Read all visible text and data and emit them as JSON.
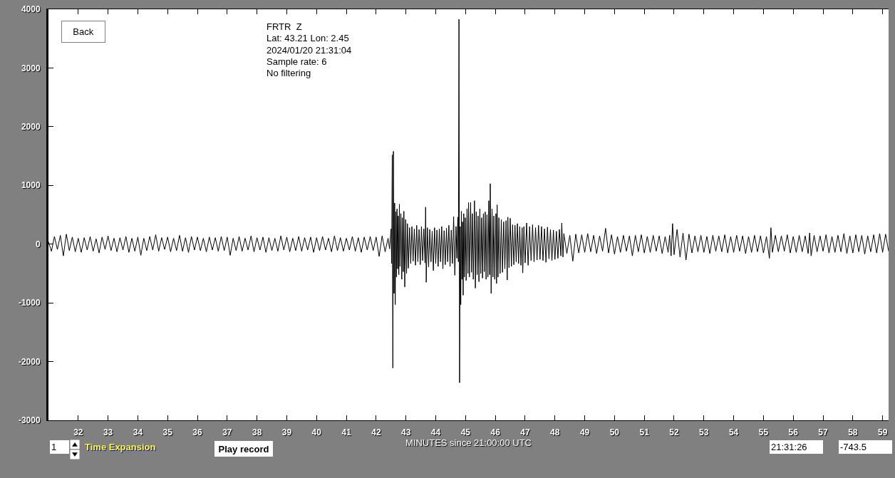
{
  "chart_data": {
    "type": "line",
    "xlabel": "MINUTES since 21:00:00 UTC",
    "annotations": [
      "FRTR  Z",
      "Lat: 43.21 Lon: 2.45",
      "2024/01/20 21:31:04",
      "Sample rate: 6",
      "No filtering",
      "Back",
      "1",
      "Time Expansion",
      "Play record",
      "21:31:26",
      "-743.5"
    ],
    "xlim": [
      31,
      59.2
    ],
    "xticks": [
      32,
      33,
      34,
      35,
      36,
      37,
      38,
      39,
      40,
      41,
      42,
      43,
      44,
      45,
      46,
      47,
      48,
      49,
      50,
      51,
      52,
      53,
      54,
      55,
      56,
      57,
      58,
      59
    ],
    "ylim": [
      -3000,
      4000
    ],
    "yticks": [
      -3000,
      -2000,
      -1000,
      0,
      1000,
      2000,
      3000,
      4000
    ],
    "x": [
      31.0,
      31.1,
      31.2,
      31.3,
      31.4,
      31.5,
      31.6,
      31.7,
      31.8,
      31.9,
      32.0,
      32.1,
      32.2,
      32.3,
      32.4,
      32.5,
      32.6,
      32.7,
      32.8,
      32.9,
      33.0,
      33.1,
      33.2,
      33.3,
      33.4,
      33.5,
      33.6,
      33.7,
      33.8,
      33.9,
      34.0,
      34.1,
      34.2,
      34.3,
      34.4,
      34.5,
      34.6,
      34.7,
      34.8,
      34.9,
      35.0,
      35.1,
      35.2,
      35.3,
      35.4,
      35.5,
      35.6,
      35.7,
      35.8,
      35.9,
      36.0,
      36.1,
      36.2,
      36.3,
      36.4,
      36.5,
      36.6,
      36.7,
      36.8,
      36.9,
      37.0,
      37.1,
      37.2,
      37.3,
      37.4,
      37.5,
      37.6,
      37.7,
      37.8,
      37.9,
      38.0,
      38.1,
      38.2,
      38.3,
      38.4,
      38.5,
      38.6,
      38.7,
      38.8,
      38.9,
      39.0,
      39.1,
      39.2,
      39.3,
      39.4,
      39.5,
      39.6,
      39.7,
      39.8,
      39.9,
      40.0,
      40.1,
      40.2,
      40.3,
      40.4,
      40.5,
      40.6,
      40.7,
      40.8,
      40.9,
      41.0,
      41.1,
      41.2,
      41.3,
      41.4,
      41.5,
      41.6,
      41.7,
      41.8,
      41.9,
      42.0,
      42.1,
      42.2,
      42.3,
      42.4,
      42.45,
      42.5,
      42.52,
      42.54,
      42.56,
      42.58,
      42.6,
      42.62,
      42.64,
      42.66,
      42.68,
      42.7,
      42.72,
      42.74,
      42.76,
      42.78,
      42.8,
      42.83,
      42.86,
      42.88,
      42.91,
      42.93,
      42.96,
      42.99,
      43.02,
      43.05,
      43.08,
      43.12,
      43.16,
      43.2,
      43.24,
      43.28,
      43.32,
      43.36,
      43.4,
      43.44,
      43.48,
      43.52,
      43.56,
      43.6,
      43.64,
      43.66,
      43.68,
      43.72,
      43.76,
      43.8,
      43.84,
      43.88,
      43.92,
      43.96,
      44.0,
      44.04,
      44.08,
      44.12,
      44.16,
      44.2,
      44.24,
      44.28,
      44.32,
      44.36,
      44.4,
      44.44,
      44.48,
      44.52,
      44.56,
      44.6,
      44.64,
      44.68,
      44.71,
      44.74,
      44.76,
      44.78,
      44.8,
      44.82,
      44.84,
      44.86,
      44.88,
      44.9,
      44.92,
      44.94,
      44.96,
      44.99,
      45.02,
      45.05,
      45.08,
      45.1,
      45.13,
      45.17,
      45.2,
      45.23,
      45.26,
      45.3,
      45.33,
      45.36,
      45.39,
      45.42,
      45.45,
      45.48,
      45.51,
      45.54,
      45.57,
      45.6,
      45.63,
      45.66,
      45.69,
      45.72,
      45.75,
      45.78,
      45.81,
      45.83,
      45.86,
      45.89,
      45.92,
      45.95,
      45.98,
      46.02,
      46.04,
      46.06,
      46.09,
      46.12,
      46.16,
      46.2,
      46.24,
      46.28,
      46.32,
      46.36,
      46.4,
      46.42,
      46.46,
      46.5,
      46.54,
      46.58,
      46.62,
      46.66,
      46.7,
      46.74,
      46.78,
      46.82,
      46.86,
      46.9,
      46.92,
      46.96,
      47.0,
      47.05,
      47.1,
      47.15,
      47.2,
      47.25,
      47.3,
      47.35,
      47.4,
      47.45,
      47.5,
      47.55,
      47.6,
      47.65,
      47.7,
      47.75,
      47.8,
      47.85,
      47.9,
      47.95,
      48.0,
      48.05,
      48.1,
      48.15,
      48.2,
      48.23,
      48.27,
      48.3,
      48.4,
      48.5,
      48.6,
      48.7,
      48.8,
      48.9,
      49.0,
      49.1,
      49.2,
      49.3,
      49.4,
      49.5,
      49.6,
      49.7,
      49.8,
      49.9,
      50.0,
      50.1,
      50.2,
      50.3,
      50.4,
      50.5,
      50.6,
      50.7,
      50.8,
      50.9,
      51.0,
      51.1,
      51.2,
      51.3,
      51.4,
      51.5,
      51.6,
      51.7,
      51.8,
      51.85,
      51.9,
      51.95,
      52.0,
      52.1,
      52.2,
      52.3,
      52.4,
      52.5,
      52.6,
      52.7,
      52.8,
      52.9,
      53.0,
      53.1,
      53.2,
      53.3,
      53.4,
      53.5,
      53.6,
      53.7,
      53.8,
      53.9,
      54.0,
      54.1,
      54.2,
      54.3,
      54.4,
      54.5,
      54.6,
      54.7,
      54.8,
      54.9,
      55.0,
      55.1,
      55.2,
      55.25,
      55.3,
      55.4,
      55.5,
      55.6,
      55.7,
      55.8,
      55.9,
      56.0,
      56.1,
      56.2,
      56.3,
      56.4,
      56.5,
      56.55,
      56.6,
      56.7,
      56.8,
      56.9,
      57.0,
      57.1,
      57.2,
      57.3,
      57.4,
      57.5,
      57.6,
      57.7,
      57.8,
      57.9,
      58.0,
      58.1,
      58.2,
      58.3,
      58.4,
      58.5,
      58.6,
      58.7,
      58.8,
      58.9,
      59.0,
      59.1,
      59.2
    ],
    "series": [
      {
        "color": "#000000",
        "values": [
          40,
          -120,
          130,
          -90,
          150,
          -200,
          170,
          -110,
          120,
          -130,
          100,
          -140,
          110,
          -100,
          130,
          -120,
          90,
          -150,
          120,
          -90,
          140,
          -110,
          100,
          -130,
          110,
          -100,
          130,
          -140,
          100,
          -120,
          120,
          -190,
          100,
          -110,
          130,
          -100,
          160,
          -120,
          110,
          -90,
          120,
          -130,
          100,
          -110,
          150,
          -120,
          110,
          -140,
          130,
          -100,
          120,
          -110,
          100,
          -130,
          120,
          -100,
          110,
          -120,
          130,
          -110,
          120,
          -190,
          100,
          -110,
          130,
          -120,
          100,
          -100,
          140,
          -130,
          110,
          -100,
          120,
          -140,
          110,
          -110,
          100,
          -120,
          140,
          -100,
          120,
          -130,
          100,
          -110,
          130,
          -120,
          110,
          -100,
          120,
          -140,
          110,
          -110,
          130,
          -100,
          100,
          -130,
          140,
          -110,
          110,
          -120,
          100,
          -100,
          130,
          -120,
          110,
          -140,
          120,
          -100,
          130,
          -110,
          120,
          -210,
          140,
          -130,
          100,
          -80,
          260,
          -330,
          1520,
          -2110,
          1580,
          -840,
          700,
          -1030,
          550,
          -560,
          600,
          -420,
          480,
          -520,
          680,
          -380,
          520,
          -600,
          450,
          -470,
          560,
          -730,
          420,
          -500,
          350,
          -410,
          280,
          -330,
          300,
          -290,
          260,
          -360,
          320,
          -300,
          250,
          -350,
          300,
          -280,
          260,
          -320,
          630,
          -650,
          280,
          -390,
          250,
          -300,
          220,
          -450,
          280,
          -330,
          240,
          -380,
          260,
          -300,
          300,
          -420,
          230,
          -350,
          270,
          -300,
          320,
          -380,
          240,
          -330,
          470,
          -530,
          300,
          -240,
          460,
          -300,
          3830,
          -2360,
          300,
          -1030,
          560,
          -600,
          380,
          -870,
          520,
          -560,
          450,
          -620,
          600,
          -500,
          710,
          -560,
          710,
          -480,
          520,
          -600,
          740,
          -750,
          550,
          -520,
          480,
          -640,
          600,
          -500,
          450,
          -580,
          520,
          -470,
          550,
          -600,
          500,
          -560,
          740,
          -520,
          1030,
          -840,
          600,
          -560,
          480,
          -600,
          520,
          -670,
          670,
          -560,
          450,
          -500,
          420,
          -480,
          380,
          -420,
          400,
          -610,
          460,
          -400,
          440,
          -380,
          330,
          -350,
          320,
          -300,
          350,
          -330,
          300,
          -360,
          280,
          -490,
          300,
          -320,
          360,
          -360,
          300,
          -280,
          330,
          -300,
          280,
          -270,
          320,
          -260,
          300,
          -280,
          260,
          -310,
          290,
          -250,
          250,
          -280,
          240,
          -260,
          220,
          -240,
          250,
          -200,
          360,
          -220,
          180,
          -160,
          150,
          -290,
          170,
          -150,
          160,
          -140,
          180,
          -130,
          150,
          -160,
          140,
          -120,
          270,
          -150,
          160,
          -170,
          130,
          -140,
          150,
          -120,
          140,
          -200,
          150,
          -130,
          160,
          -150,
          130,
          -140,
          150,
          -120,
          140,
          -160,
          130,
          -140,
          150,
          -200,
          350,
          -180,
          250,
          -220,
          190,
          -270,
          170,
          -150,
          140,
          -130,
          150,
          -140,
          130,
          -160,
          150,
          -120,
          140,
          -130,
          160,
          -150,
          130,
          -140,
          150,
          -120,
          140,
          -160,
          130,
          -140,
          150,
          -130,
          140,
          -150,
          130,
          -240,
          280,
          -140,
          150,
          -130,
          140,
          -120,
          160,
          -150,
          130,
          -140,
          150,
          -130,
          140,
          -160,
          190,
          -200,
          150,
          -130,
          140,
          -120,
          160,
          -150,
          130,
          -140,
          150,
          -130,
          180,
          -160,
          140,
          -150,
          160,
          -130,
          150,
          -170,
          140,
          -130,
          160,
          -150,
          180,
          -140,
          170,
          -120
        ]
      }
    ]
  }
}
